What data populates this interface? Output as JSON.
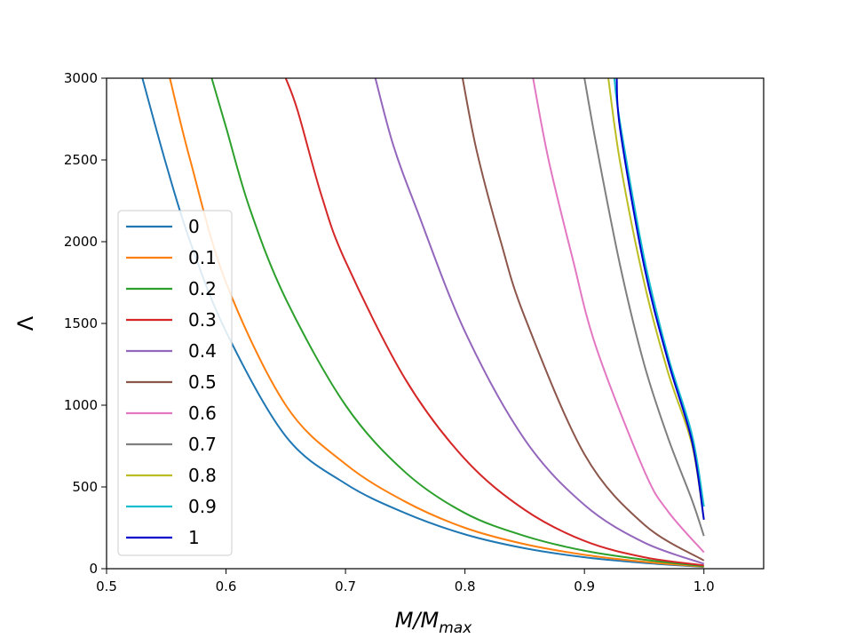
{
  "chart_data": {
    "type": "line",
    "title": "",
    "xlabel": "M/M_max",
    "xlabel_main": "M/M",
    "xlabel_sub": "max",
    "ylabel": "Λ",
    "xlim": [
      0.5,
      1.05
    ],
    "ylim": [
      0,
      3000
    ],
    "xticks": [
      "0.5",
      "0.6",
      "0.7",
      "0.8",
      "0.9",
      "1.0"
    ],
    "yticks": [
      "0",
      "500",
      "1000",
      "1500",
      "2000",
      "2500",
      "3000"
    ],
    "legend_location": "lower-left",
    "grid": false,
    "series": [
      {
        "name": "0",
        "color": "#1f77b4",
        "x": [
          0.53,
          0.55,
          0.57,
          0.6,
          0.65,
          0.7,
          0.75,
          0.8,
          0.85,
          0.9,
          0.95,
          1.0
        ],
        "y": [
          3000,
          2470,
          2000,
          1450,
          810,
          520,
          340,
          210,
          125,
          70,
          35,
          10
        ]
      },
      {
        "name": "0.1",
        "color": "#ff7f0e",
        "x": [
          0.553,
          0.57,
          0.6,
          0.65,
          0.7,
          0.75,
          0.8,
          0.85,
          0.9,
          0.95,
          1.0
        ],
        "y": [
          3000,
          2500,
          1750,
          1000,
          640,
          410,
          250,
          150,
          85,
          42,
          12
        ]
      },
      {
        "name": "0.2",
        "color": "#2ca02c",
        "x": [
          0.588,
          0.6,
          0.62,
          0.65,
          0.7,
          0.75,
          0.8,
          0.85,
          0.9,
          0.95,
          1.0
        ],
        "y": [
          3000,
          2700,
          2200,
          1650,
          1000,
          590,
          340,
          200,
          110,
          55,
          15
        ]
      },
      {
        "name": "0.3",
        "color": "#d62728",
        "x": [
          0.65,
          0.66,
          0.68,
          0.7,
          0.75,
          0.8,
          0.85,
          0.9,
          0.95,
          1.0
        ],
        "y": [
          3000,
          2800,
          2280,
          1880,
          1160,
          670,
          360,
          170,
          70,
          20
        ]
      },
      {
        "name": "0.4",
        "color": "#9467bd",
        "x": [
          0.725,
          0.74,
          0.76,
          0.8,
          0.85,
          0.9,
          0.95,
          1.0
        ],
        "y": [
          3000,
          2590,
          2190,
          1450,
          790,
          390,
          160,
          30
        ]
      },
      {
        "name": "0.5",
        "color": "#8c564b",
        "x": [
          0.798,
          0.81,
          0.83,
          0.85,
          0.9,
          0.95,
          1.0
        ],
        "y": [
          3000,
          2550,
          2000,
          1540,
          700,
          270,
          50
        ]
      },
      {
        "name": "0.6",
        "color": "#e377c2",
        "x": [
          0.857,
          0.87,
          0.89,
          0.91,
          0.95,
          0.97,
          1.0
        ],
        "y": [
          3000,
          2500,
          1900,
          1350,
          600,
          350,
          100
        ]
      },
      {
        "name": "0.7",
        "color": "#7f7f7f",
        "x": [
          0.9,
          0.91,
          0.93,
          0.95,
          0.97,
          0.99,
          1.0
        ],
        "y": [
          3000,
          2590,
          1850,
          1250,
          800,
          420,
          200
        ]
      },
      {
        "name": "0.8",
        "color": "#bcbd22",
        "x": [
          0.92,
          0.93,
          0.95,
          0.97,
          0.99,
          1.0
        ],
        "y": [
          3000,
          2480,
          1750,
          1200,
          760,
          300
        ]
      },
      {
        "name": "0.9",
        "color": "#17becf",
        "x": [
          0.925,
          0.93,
          0.95,
          0.97,
          0.99,
          1.0
        ],
        "y": [
          3000,
          2720,
          1900,
          1300,
          820,
          380
        ]
      },
      {
        "name": "1",
        "color": "#0000cd",
        "x": [
          0.927,
          0.93,
          0.95,
          0.97,
          0.99,
          1.0
        ],
        "y": [
          3000,
          2680,
          1850,
          1270,
          780,
          300
        ]
      }
    ]
  }
}
